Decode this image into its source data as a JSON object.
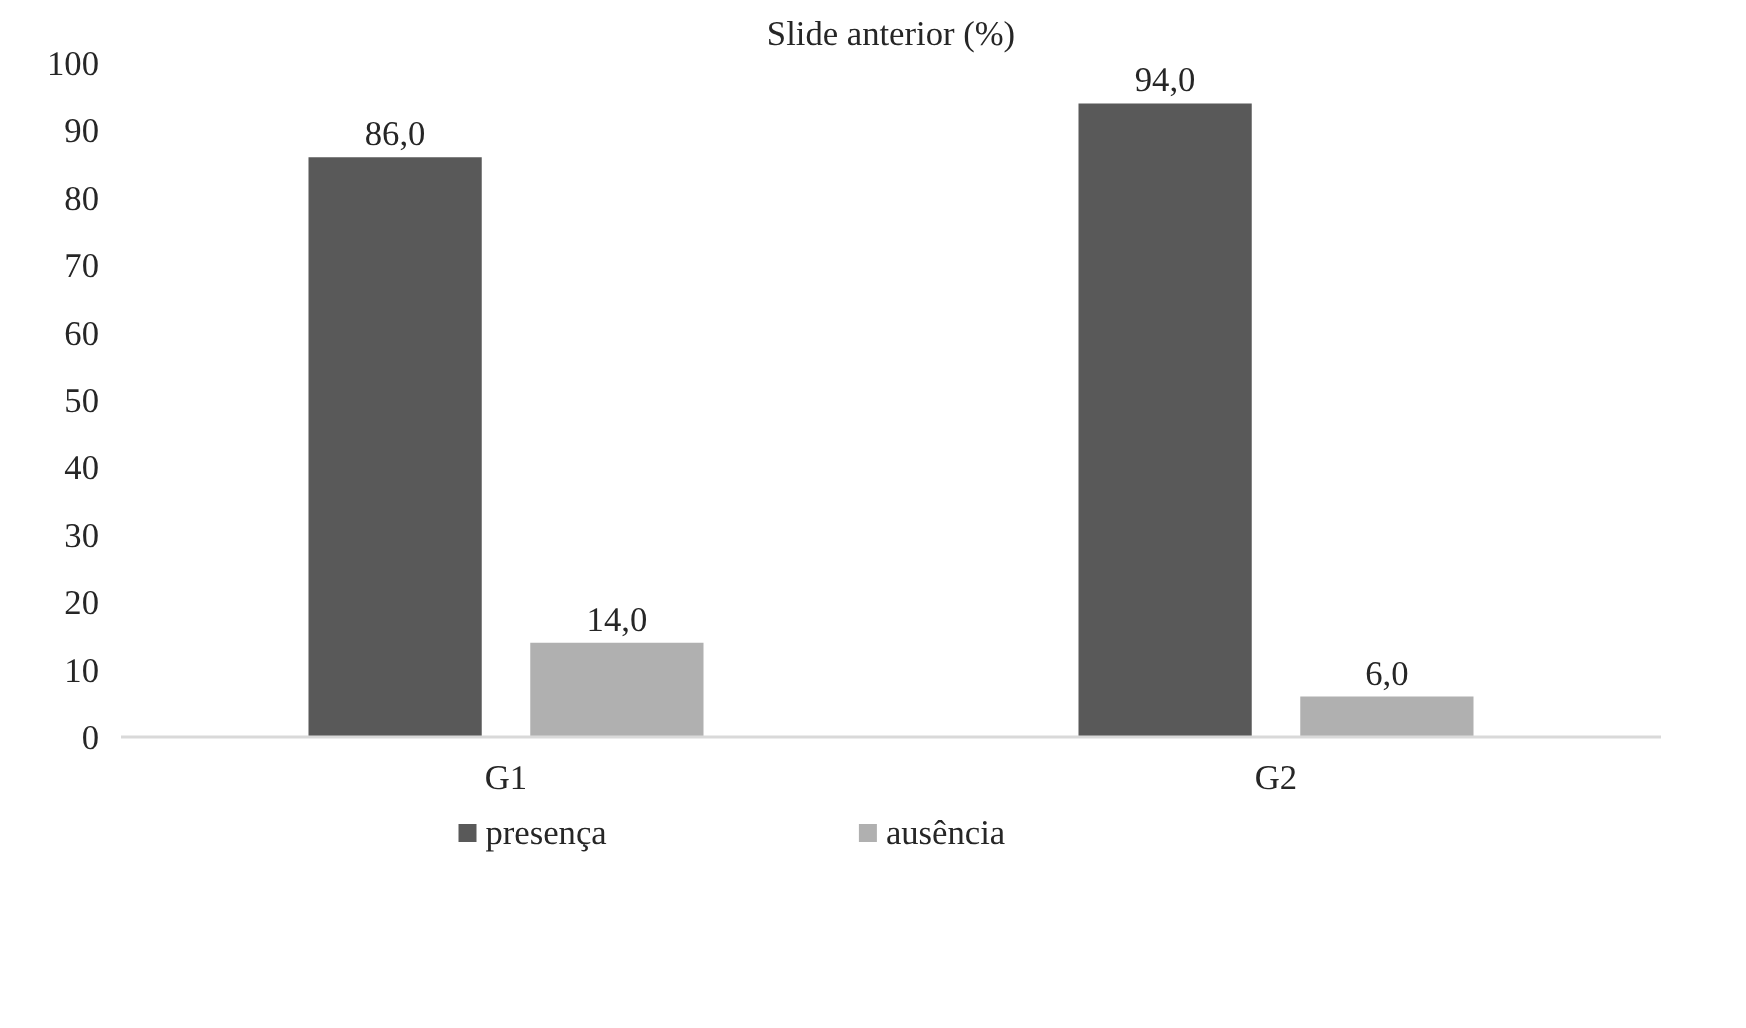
{
  "chart_data": {
    "type": "bar",
    "title": "Slide anterior (%)",
    "categories": [
      "G1",
      "G2"
    ],
    "series": [
      {
        "name": "presença",
        "color": "#595959",
        "values": [
          86.0,
          94.0
        ],
        "value_labels": [
          "86,0",
          "94,0"
        ]
      },
      {
        "name": "ausência",
        "color": "#b0b0b0",
        "values": [
          14.0,
          6.0
        ],
        "value_labels": [
          "14,0",
          "6,0"
        ]
      }
    ],
    "ylim": [
      0,
      100
    ],
    "yticks": [
      0,
      10,
      20,
      30,
      40,
      50,
      60,
      70,
      80,
      90,
      100
    ],
    "grid": false,
    "legend": "bottom"
  }
}
